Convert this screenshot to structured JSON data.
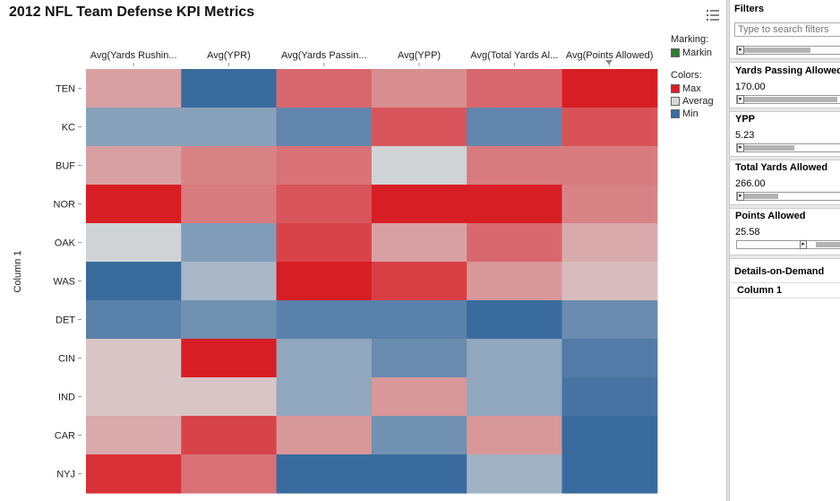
{
  "title": "2012 NFL Team Defense KPI Metrics",
  "chart_data": {
    "type": "heatmap",
    "title": "2012 NFL Team Defense KPI Metrics",
    "xlabel": "",
    "ylabel": "Column 1",
    "columns": [
      "Avg(Yards Rushin...",
      "Avg(YPR)",
      "Avg(Yards Passin...",
      "Avg(YPP)",
      "Avg(Total Yards Al...",
      "Avg(Points Allowed)"
    ],
    "rows": [
      "TEN",
      "KC",
      "BUF",
      "NOR",
      "OAK",
      "WAS",
      "DET",
      "CIN",
      "IND",
      "CAR",
      "NYJ"
    ],
    "values": [
      [
        0.3,
        -1.0,
        0.6,
        0.4,
        0.6,
        1.0
      ],
      [
        -0.5,
        -0.5,
        -0.75,
        0.7,
        -0.75,
        0.72
      ],
      [
        0.3,
        0.45,
        0.55,
        -0.05,
        0.5,
        0.5
      ],
      [
        1.0,
        0.5,
        0.7,
        1.0,
        1.0,
        0.45
      ],
      [
        -0.05,
        -0.55,
        0.8,
        0.3,
        0.6,
        0.25
      ],
      [
        -1.0,
        -0.3,
        1.0,
        0.82,
        0.35,
        0.15
      ],
      [
        -0.8,
        -0.65,
        -0.8,
        -0.8,
        -1.0,
        -0.7
      ],
      [
        0.1,
        1.0,
        -0.45,
        -0.7,
        -0.45,
        -0.85
      ],
      [
        0.1,
        0.1,
        -0.45,
        0.35,
        -0.45,
        -0.92
      ],
      [
        0.25,
        0.8,
        0.35,
        -0.65,
        0.35,
        -1.0
      ],
      [
        0.9,
        0.55,
        -1.0,
        -1.0,
        -0.35,
        -1.0
      ]
    ],
    "value_scale": "diverging from Min (-1) through Average (0) to Max (1)",
    "colors": {
      "max": "#d81e25",
      "average": "#d8d8d8",
      "min": "#3a6b9e"
    },
    "legend_position": "right"
  },
  "legend": {
    "marking_title": "Marking:",
    "marking_item": "Markin",
    "marking_color": "#2e7d32",
    "colors_title": "Colors:",
    "items": [
      {
        "label": "Max",
        "color": "#d81e25"
      },
      {
        "label": "Averag",
        "color": "#d8d8d8"
      },
      {
        "label": "Min",
        "color": "#3a6b9e"
      }
    ]
  },
  "filters_panel": {
    "title": "Filters",
    "search_placeholder": "Type to search filters",
    "filters": [
      {
        "label": "Yards Passing Allowed",
        "value": "170.00"
      },
      {
        "label": "YPP",
        "value": "5.23"
      },
      {
        "label": "Total Yards Allowed",
        "value": "266.00"
      },
      {
        "label": "Points Allowed",
        "value": "25.58"
      }
    ]
  },
  "details": {
    "title": "Details-on-Demand",
    "column_header": "Column 1"
  },
  "icons": {
    "menu": "list-menu-icon",
    "slider_arrow": "right-arrow-icon"
  }
}
